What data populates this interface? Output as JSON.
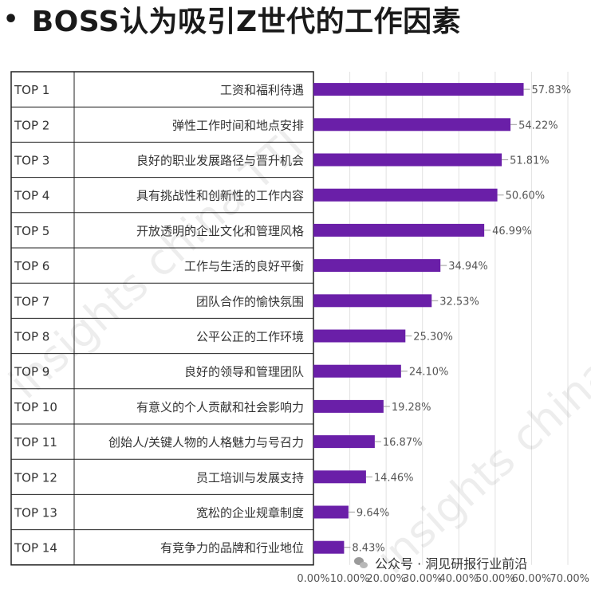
{
  "page": {
    "bullet": "•",
    "title": "BOSS认为吸引Z世代的工作因素"
  },
  "footer": {
    "icon": "wechat-icon",
    "text": "公众号 · 洞见研报行业前沿"
  },
  "watermark": {
    "text": "insights china TTI"
  },
  "chart_data": {
    "type": "bar",
    "orientation": "horizontal",
    "title": "BOSS认为吸引Z世代的工作因素",
    "bar_color": "#6a1fa8",
    "ranks": [
      "TOP 1",
      "TOP 2",
      "TOP 3",
      "TOP 4",
      "TOP 5",
      "TOP 6",
      "TOP 7",
      "TOP 8",
      "TOP 9",
      "TOP 10",
      "TOP 11",
      "TOP 12",
      "TOP 13",
      "TOP 14"
    ],
    "categories": [
      "工资和福利待遇",
      "弹性工作时间和地点安排",
      "良好的职业发展路径与晋升机会",
      "具有挑战性和创新性的工作内容",
      "开放透明的企业文化和管理风格",
      "工作与生活的良好平衡",
      "团队合作的愉快氛围",
      "公平公正的工作环境",
      "良好的领导和管理团队",
      "有意义的个人贡献和社会影响力",
      "创始人/关键人物的人格魅力与号召力",
      "员工培训与发展支持",
      "宽松的企业规章制度",
      "有竞争力的品牌和行业地位"
    ],
    "values": [
      57.83,
      54.22,
      51.81,
      50.6,
      46.99,
      34.94,
      32.53,
      25.3,
      24.1,
      19.28,
      16.87,
      14.46,
      9.64,
      8.43
    ],
    "value_labels": [
      "57.83%",
      "54.22%",
      "51.81%",
      "50.60%",
      "46.99%",
      "34.94%",
      "32.53%",
      "25.30%",
      "24.10%",
      "19.28%",
      "16.87%",
      "14.46%",
      "9.64%",
      "8.43%"
    ],
    "xlim": [
      0,
      70
    ],
    "x_ticks": [
      "0.00%",
      "10.00%",
      "20.00%",
      "30.00%",
      "40.00%",
      "50.00%",
      "60.00%",
      "70.00%"
    ],
    "grid": true
  }
}
